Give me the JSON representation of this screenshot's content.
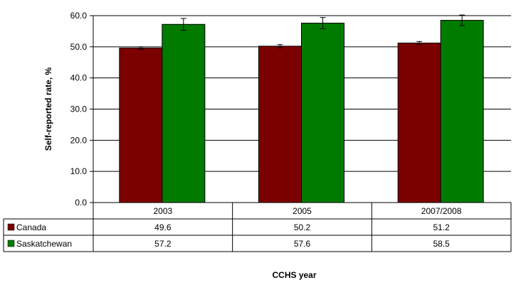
{
  "chart_data": {
    "type": "bar",
    "title": "",
    "xlabel": "CCHS year",
    "ylabel": "Self-reported rate, %",
    "categories": [
      "2003",
      "2005",
      "2007/2008"
    ],
    "ylim": [
      0,
      60
    ],
    "yticks": [
      "0.0",
      "10.0",
      "20.0",
      "30.0",
      "40.0",
      "50.0",
      "60.0"
    ],
    "grid": true,
    "legend": "data-table-left",
    "series": [
      {
        "name": "Canada",
        "values": [
          49.6,
          50.2,
          51.2
        ],
        "value_labels": [
          "49.6",
          "50.2",
          "51.2"
        ],
        "error_low": [
          49.2,
          49.7,
          50.7
        ],
        "error_high": [
          50.0,
          50.7,
          51.7
        ],
        "color": "#7b0000"
      },
      {
        "name": "Saskatchewan",
        "values": [
          57.2,
          57.6,
          58.5
        ],
        "value_labels": [
          "57.2",
          "57.6",
          "58.5"
        ],
        "error_low": [
          55.3,
          55.8,
          56.8
        ],
        "error_high": [
          59.1,
          59.4,
          60.2
        ],
        "color": "#007b00"
      }
    ]
  }
}
